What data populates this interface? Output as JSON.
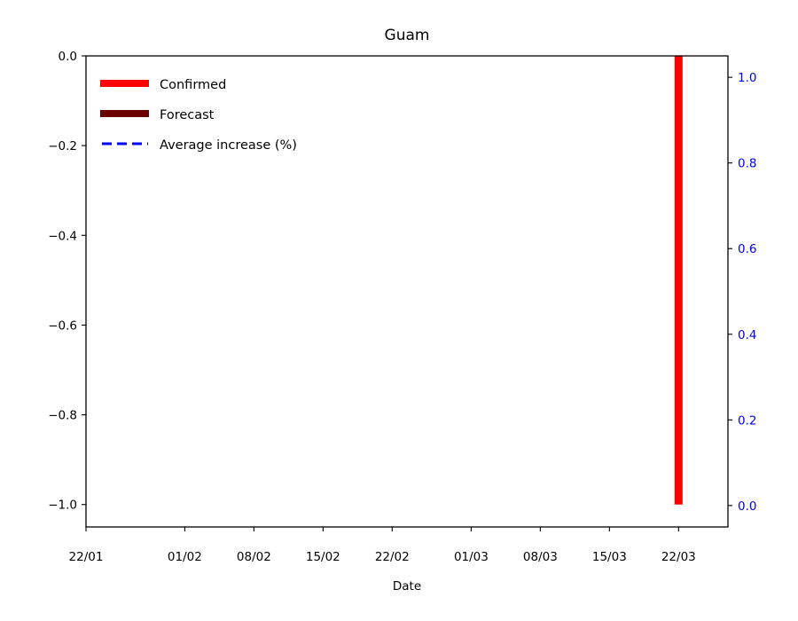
{
  "colors": {
    "confirmed": "#ff0000",
    "forecast": "#6b0000",
    "average": "#0000ff",
    "axis": "#000000",
    "right_axis_text": "#0000ff"
  },
  "chart_data": {
    "type": "bar",
    "title": "Guam",
    "xlabel": "Date",
    "ylabel": "",
    "x_tick_labels": [
      {
        "date": "2020-01-22",
        "label": "22/01"
      },
      {
        "date": "2020-02-01",
        "label": "01/02"
      },
      {
        "date": "2020-02-08",
        "label": "08/02"
      },
      {
        "date": "2020-02-15",
        "label": "15/02"
      },
      {
        "date": "2020-02-22",
        "label": "22/02"
      },
      {
        "date": "2020-03-01",
        "label": "01/03"
      },
      {
        "date": "2020-03-08",
        "label": "08/03"
      },
      {
        "date": "2020-03-15",
        "label": "15/03"
      },
      {
        "date": "2020-03-22",
        "label": "22/03"
      }
    ],
    "xlim": [
      "2020-01-22",
      "2020-03-27"
    ],
    "left_axis": {
      "ylim": [
        -1.05,
        0.0
      ],
      "ticks": [
        0.0,
        -0.2,
        -0.4,
        -0.6,
        -0.8,
        -1.0
      ],
      "tick_labels": [
        "0.0",
        "−0.2",
        "−0.4",
        "−0.6",
        "−0.8",
        "−1.0"
      ]
    },
    "right_axis": {
      "ylim": [
        -0.05,
        1.05
      ],
      "ticks": [
        0.0,
        0.2,
        0.4,
        0.6,
        0.8,
        1.0
      ],
      "tick_labels": [
        "0.0",
        "0.2",
        "0.4",
        "0.6",
        "0.8",
        "1.0"
      ]
    },
    "legend": {
      "placement": "top-left",
      "entries": [
        {
          "label": "Confirmed",
          "style": "thick-solid",
          "color_key": "confirmed"
        },
        {
          "label": "Forecast",
          "style": "thick-solid",
          "color_key": "forecast"
        },
        {
          "label": "Average increase (%)",
          "style": "dashed",
          "color_key": "average"
        }
      ]
    },
    "series": [
      {
        "name": "Confirmed",
        "points": [
          {
            "date": "2020-03-22",
            "low": -1.0,
            "high": 0.0
          }
        ]
      },
      {
        "name": "Forecast",
        "points": []
      },
      {
        "name": "Average increase (%)",
        "points": []
      }
    ],
    "grid": false
  }
}
